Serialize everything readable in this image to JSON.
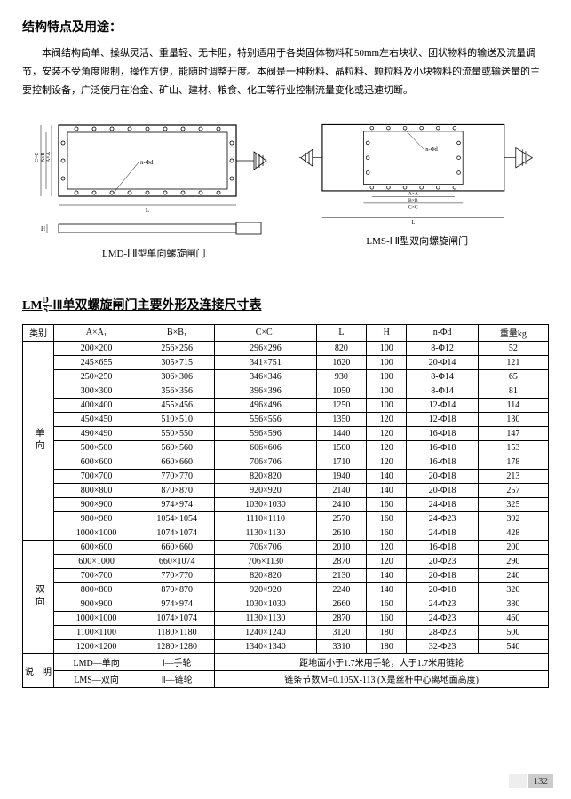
{
  "title": "结构特点及用途：",
  "para1": "本阀结构简单、操纵灵活、重量轻、无卡阻，特别适用于各类固体物料和50mm左右块状、团状物料的输送及流量调节，安装不受角度限制，操作方便，能随时调整开度。本阀是一种粉料、晶粒料、颗粒料及小块物料的流量或输送量的主要控制设备，广泛使用在冶金、矿山、建材、粮食、化工等行业控制流量变化或迅速切断。",
  "diag1_label": "LMD-Ⅰ Ⅱ型单向螺旋闸门",
  "diag2_label": "LMS-Ⅰ Ⅱ型双向螺旋闸门",
  "table_title_pre": "LM",
  "table_title_frac_top": "D",
  "table_title_frac_bot": "S",
  "table_title_post": "-ⅠⅡ单双螺旋闸门主要外形及连接尺寸表",
  "headers": [
    "类别",
    "A×A₁",
    "B×B₁",
    "C×C₁",
    "L",
    "H",
    "n-Φd",
    "重量kg"
  ],
  "group1_label": "单向",
  "group2_label": "双向",
  "rows1": [
    [
      "200×200",
      "256×256",
      "296×296",
      "820",
      "100",
      "8-Φ12",
      "52"
    ],
    [
      "245×655",
      "305×715",
      "341×751",
      "1620",
      "100",
      "20-Φ14",
      "121"
    ],
    [
      "250×250",
      "306×306",
      "346×346",
      "930",
      "100",
      "8-Φ14",
      "65"
    ],
    [
      "300×300",
      "356×356",
      "396×396",
      "1050",
      "100",
      "8-Φ14",
      "81"
    ],
    [
      "400×400",
      "455×456",
      "496×496",
      "1250",
      "100",
      "12-Φ14",
      "114"
    ],
    [
      "450×450",
      "510×510",
      "556×556",
      "1350",
      "120",
      "12-Φ18",
      "130"
    ],
    [
      "490×490",
      "550×550",
      "596×596",
      "1440",
      "120",
      "16-Φ18",
      "147"
    ],
    [
      "500×500",
      "560×560",
      "606×606",
      "1500",
      "120",
      "16-Φ18",
      "153"
    ],
    [
      "600×600",
      "660×660",
      "706×706",
      "1710",
      "120",
      "16-Φ18",
      "178"
    ],
    [
      "700×700",
      "770×770",
      "820×820",
      "1940",
      "140",
      "20-Φ18",
      "213"
    ],
    [
      "800×800",
      "870×870",
      "920×920",
      "2140",
      "140",
      "20-Φ18",
      "257"
    ],
    [
      "900×900",
      "974×974",
      "1030×1030",
      "2410",
      "160",
      "24-Φ18",
      "325"
    ],
    [
      "980×980",
      "1054×1054",
      "1110×1110",
      "2570",
      "160",
      "24-Φ23",
      "392"
    ],
    [
      "1000×1000",
      "1074×1074",
      "1130×1130",
      "2610",
      "160",
      "24-Φ18",
      "428"
    ]
  ],
  "rows2": [
    [
      "600×600",
      "660×660",
      "706×706",
      "2010",
      "120",
      "16-Φ18",
      "200"
    ],
    [
      "600×1000",
      "660×1074",
      "706×1130",
      "2870",
      "120",
      "20-Φ23",
      "290"
    ],
    [
      "700×700",
      "770×770",
      "820×820",
      "2130",
      "140",
      "20-Φ18",
      "240"
    ],
    [
      "800×800",
      "870×870",
      "920×920",
      "2240",
      "140",
      "20-Φ18",
      "320"
    ],
    [
      "900×900",
      "974×974",
      "1030×1030",
      "2660",
      "160",
      "24-Φ23",
      "380"
    ],
    [
      "1000×1000",
      "1074×1074",
      "1130×1130",
      "2870",
      "160",
      "24-Φ23",
      "460"
    ],
    [
      "1100×1100",
      "1180×1180",
      "1240×1240",
      "3120",
      "180",
      "28-Φ23",
      "500"
    ],
    [
      "1200×1200",
      "1280×1280",
      "1340×1340",
      "3310",
      "180",
      "32-Φ23",
      "540"
    ]
  ],
  "note_label": "说　明",
  "note_r1c1": "LMD—单向",
  "note_r1c2": "Ⅰ—手轮",
  "note_r1c3": "距地面小于1.7米用手轮，大于1.7米用链轮",
  "note_r2c1": "LMS—双向",
  "note_r2c2": "Ⅱ—链轮",
  "note_r2c3": "链条节数M=0.105X-113 (X是丝杆中心离地面高度)",
  "pagenum": "132"
}
